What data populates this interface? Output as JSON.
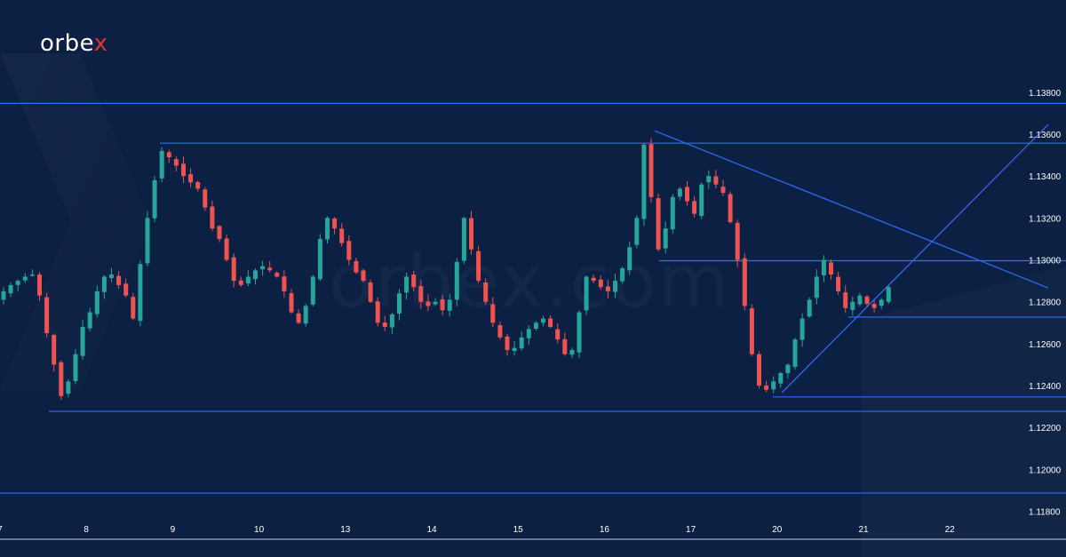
{
  "brand": {
    "name": "orbe",
    "accent": "x"
  },
  "watermark": "orbex.com",
  "colors": {
    "background": "#0c2043",
    "bull": "#26a69a",
    "bear": "#ef5350",
    "line": "#2f6bff",
    "text": "#ffffff"
  },
  "chart_data": {
    "type": "candlestick",
    "title": "",
    "xlabel": "",
    "ylabel": "",
    "ylim": [
      1.1176,
      1.1388
    ],
    "yticks": [
      "1.13800",
      "1.13600",
      "1.13400",
      "1.13200",
      "1.13000",
      "1.12800",
      "1.12600",
      "1.12400",
      "1.12200",
      "1.12000",
      "1.11800"
    ],
    "xticks": [
      {
        "label": "7",
        "i": 0
      },
      {
        "label": "8",
        "i": 12
      },
      {
        "label": "9",
        "i": 24
      },
      {
        "label": "10",
        "i": 36
      },
      {
        "label": "13",
        "i": 48
      },
      {
        "label": "14",
        "i": 60
      },
      {
        "label": "15",
        "i": 72
      },
      {
        "label": "16",
        "i": 84
      },
      {
        "label": "17",
        "i": 96
      },
      {
        "label": "20",
        "i": 108
      },
      {
        "label": "21",
        "i": 120
      },
      {
        "label": "22",
        "i": 132
      }
    ],
    "closes": [
      1.1285,
      1.1288,
      1.129,
      1.1292,
      1.1293,
      1.1283,
      1.1265,
      1.125,
      1.1235,
      1.1242,
      1.1255,
      1.1268,
      1.1275,
      1.1285,
      1.1292,
      1.1293,
      1.1288,
      1.1283,
      1.1272,
      1.1298,
      1.132,
      1.1338,
      1.1352,
      1.1349,
      1.1345,
      1.134,
      1.1337,
      1.1334,
      1.1325,
      1.1315,
      1.131,
      1.13,
      1.129,
      1.1288,
      1.1292,
      1.1295,
      1.1297,
      1.1295,
      1.1292,
      1.1285,
      1.1275,
      1.127,
      1.1278,
      1.1292,
      1.131,
      1.132,
      1.1315,
      1.1308,
      1.13,
      1.1294,
      1.129,
      1.128,
      1.127,
      1.1268,
      1.1274,
      1.1284,
      1.1292,
      1.1287,
      1.128,
      1.1278,
      1.128,
      1.1276,
      1.1281,
      1.1299,
      1.132,
      1.1305,
      1.129,
      1.128,
      1.127,
      1.1263,
      1.1257,
      1.1258,
      1.1263,
      1.1267,
      1.127,
      1.1272,
      1.1268,
      1.1262,
      1.1255,
      1.1257,
      1.1275,
      1.1292,
      1.129,
      1.1287,
      1.1285,
      1.129,
      1.1296,
      1.1306,
      1.132,
      1.1355,
      1.133,
      1.1305,
      1.1315,
      1.133,
      1.1334,
      1.1328,
      1.1322,
      1.1336,
      1.134,
      1.1336,
      1.1332,
      1.1318,
      1.13,
      1.1278,
      1.1255,
      1.124,
      1.1238,
      1.1242,
      1.1246,
      1.125,
      1.1262,
      1.1272,
      1.1281,
      1.1292,
      1.13,
      1.1293,
      1.1285,
      1.1277,
      1.128,
      1.1283,
      1.1279,
      1.1277,
      1.1281,
      1.1287
    ]
  }
}
